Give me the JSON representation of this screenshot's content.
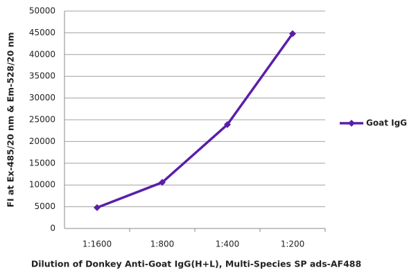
{
  "chart_data": {
    "type": "line",
    "x_label": "Dilution of Donkey Anti-Goat IgG(H+L), Multi-Species SP ads-AF488",
    "y_label": "FI at Ex-485/20 nm & Em-528/20 nm",
    "categories": [
      "1:1600",
      "1:800",
      "1:400",
      "1:200"
    ],
    "series": [
      {
        "name": "Goat IgG",
        "color": "#5a1ea8",
        "values": [
          4800,
          10600,
          23900,
          44800
        ]
      }
    ],
    "ylim": [
      0,
      50000
    ],
    "yticks": [
      0,
      5000,
      10000,
      15000,
      20000,
      25000,
      30000,
      35000,
      40000,
      45000,
      50000
    ],
    "grid": true,
    "legend": "right"
  }
}
